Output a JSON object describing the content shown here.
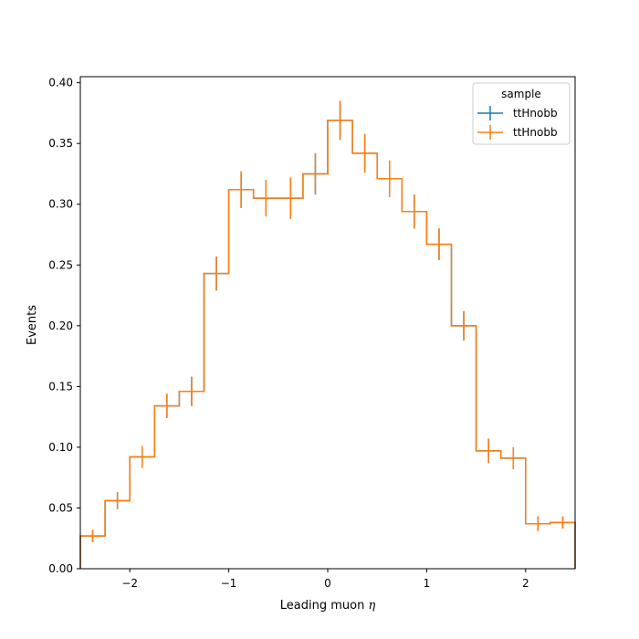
{
  "chart_data": {
    "type": "histogram",
    "xlabel": "Leading muon η",
    "ylabel": "Events",
    "xlim": [
      -2.5,
      2.5
    ],
    "ylim": [
      0,
      0.405
    ],
    "x_ticks": [
      -2,
      -1,
      0,
      1,
      2
    ],
    "x_tick_labels": [
      "−2",
      "−1",
      "0",
      "1",
      "2"
    ],
    "y_ticks": [
      0.0,
      0.05,
      0.1,
      0.15,
      0.2,
      0.25,
      0.3,
      0.35,
      0.4
    ],
    "y_tick_labels": [
      "0.00",
      "0.05",
      "0.10",
      "0.15",
      "0.20",
      "0.25",
      "0.30",
      "0.35",
      "0.40"
    ],
    "bin_edges": [
      -2.5,
      -2.25,
      -2.0,
      -1.75,
      -1.5,
      -1.25,
      -1.0,
      -0.75,
      -0.5,
      -0.25,
      0.0,
      0.25,
      0.5,
      0.75,
      1.0,
      1.25,
      1.5,
      1.75,
      2.0,
      2.25,
      2.5
    ],
    "legend": {
      "title": "sample",
      "position": "top-right"
    },
    "grid": false,
    "series": [
      {
        "name": "ttHnobb",
        "color": "#1f77b4",
        "values": [
          0.027,
          0.056,
          0.092,
          0.134,
          0.146,
          0.243,
          0.312,
          0.305,
          0.305,
          0.325,
          0.369,
          0.342,
          0.321,
          0.294,
          0.267,
          0.2,
          0.097,
          0.091,
          0.037,
          0.038
        ],
        "errors": [
          0.005,
          0.007,
          0.009,
          0.01,
          0.012,
          0.014,
          0.015,
          0.015,
          0.017,
          0.017,
          0.016,
          0.016,
          0.015,
          0.014,
          0.013,
          0.012,
          0.01,
          0.009,
          0.006,
          0.005
        ]
      },
      {
        "name": "ttHnobb",
        "color": "#ff7f0e",
        "values": [
          0.027,
          0.056,
          0.092,
          0.134,
          0.146,
          0.243,
          0.312,
          0.305,
          0.305,
          0.325,
          0.369,
          0.342,
          0.321,
          0.294,
          0.267,
          0.2,
          0.097,
          0.091,
          0.037,
          0.038
        ],
        "errors": [
          0.005,
          0.007,
          0.009,
          0.01,
          0.012,
          0.014,
          0.015,
          0.015,
          0.017,
          0.017,
          0.016,
          0.016,
          0.015,
          0.014,
          0.013,
          0.012,
          0.01,
          0.009,
          0.006,
          0.005
        ]
      }
    ]
  }
}
